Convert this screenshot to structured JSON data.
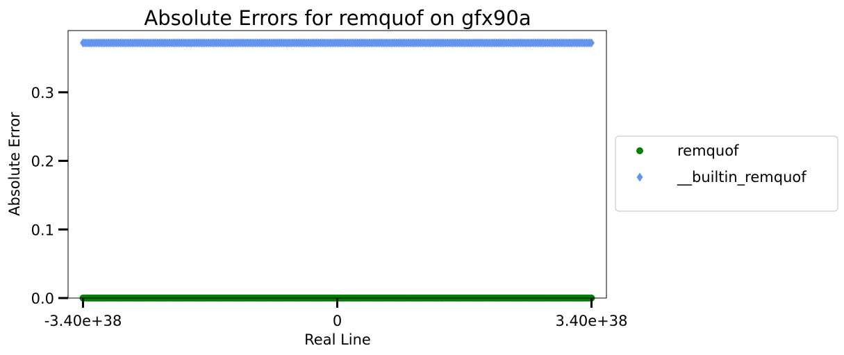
{
  "chart_data": {
    "type": "scatter",
    "title": "Absolute Errors for remquof on gfx90a",
    "xlabel": "Real Line",
    "ylabel": "Absolute Error",
    "xlim": [
      -3.6e+38,
      3.6e+38
    ],
    "ylim": [
      0,
      0.39
    ],
    "xticks": [
      {
        "value": -3.4e+38,
        "label": "-3.40e+38"
      },
      {
        "value": 0,
        "label": "0"
      },
      {
        "value": 3.4e+38,
        "label": "3.40e+38"
      }
    ],
    "yticks": [
      {
        "value": 0.0,
        "label": "0.0"
      },
      {
        "value": 0.1,
        "label": "0.1"
      },
      {
        "value": 0.2,
        "label": "0.2"
      },
      {
        "value": 0.3,
        "label": "0.3"
      }
    ],
    "grid": false,
    "legend_position": "right",
    "series": [
      {
        "name": "remquof",
        "marker": "circle",
        "color": "#008000",
        "x_range": [
          -3.4e+38,
          3.4e+38
        ],
        "y": 0.0
      },
      {
        "name": "__builtin_remquof",
        "marker": "diamond",
        "color": "#6495ED",
        "x_range": [
          -3.4e+38,
          3.4e+38
        ],
        "y": 0.372
      }
    ]
  }
}
